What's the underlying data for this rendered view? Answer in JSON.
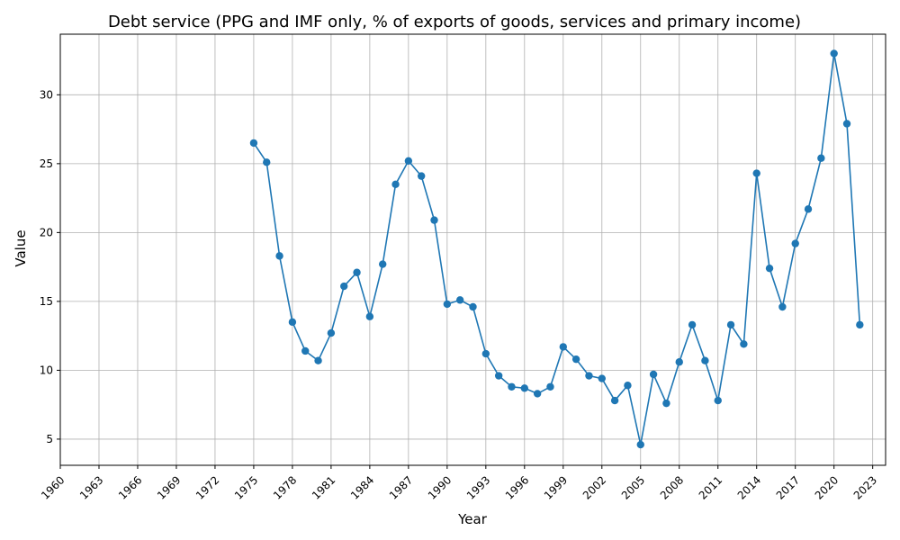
{
  "chart_data": {
    "type": "line",
    "title": "Debt service (PPG and IMF only, % of exports of goods, services and primary income)",
    "xlabel": "Year",
    "ylabel": "Value",
    "xlim": [
      1960,
      2024
    ],
    "ylim": [
      3.1,
      34.4
    ],
    "xticks": [
      1960,
      1963,
      1966,
      1969,
      1972,
      1975,
      1978,
      1981,
      1984,
      1987,
      1990,
      1993,
      1996,
      1999,
      2002,
      2005,
      2008,
      2011,
      2014,
      2017,
      2020,
      2023
    ],
    "yticks": [
      5,
      10,
      15,
      20,
      25,
      30
    ],
    "grid": true,
    "series": [
      {
        "x": [
          1975,
          1976,
          1977,
          1978,
          1979,
          1980,
          1981,
          1982,
          1983,
          1984,
          1985,
          1986,
          1987,
          1988,
          1989,
          1990,
          1991,
          1992,
          1993,
          1994,
          1995,
          1996,
          1997,
          1998,
          1999,
          2000,
          2001,
          2002,
          2003,
          2004,
          2005,
          2006,
          2007,
          2008,
          2009,
          2010,
          2011,
          2012,
          2013,
          2014,
          2015,
          2016,
          2017,
          2018,
          2019,
          2020,
          2021,
          2022
        ],
        "values": [
          26.5,
          25.1,
          18.3,
          13.5,
          11.4,
          10.7,
          12.7,
          16.1,
          17.1,
          13.9,
          17.7,
          23.5,
          25.2,
          24.1,
          20.9,
          14.8,
          15.1,
          14.6,
          11.2,
          9.6,
          8.8,
          8.7,
          8.3,
          8.8,
          11.7,
          10.8,
          9.6,
          9.4,
          7.8,
          8.9,
          4.6,
          9.7,
          7.6,
          10.6,
          13.3,
          10.7,
          7.8,
          13.3,
          11.9,
          24.3,
          17.4,
          14.6,
          19.2,
          21.7,
          25.4,
          33.0,
          27.9,
          13.3
        ]
      }
    ],
    "colors": {
      "line": "#1f77b4",
      "grid": "#b0b0b0"
    }
  }
}
